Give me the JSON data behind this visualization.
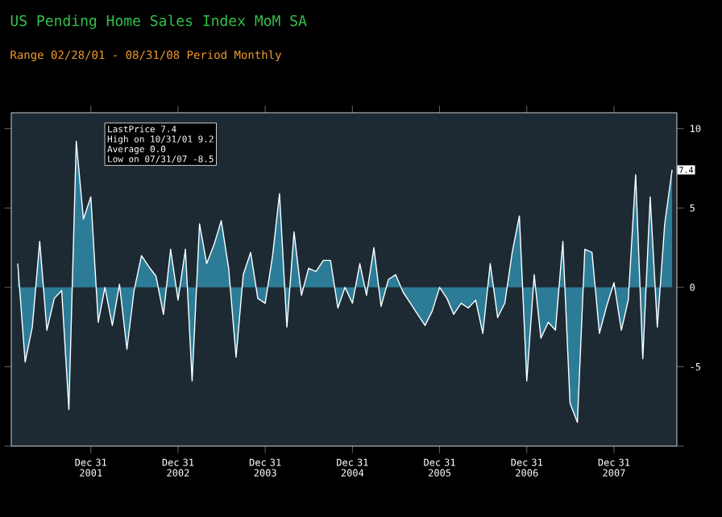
{
  "chart_data": {
    "type": "area",
    "title": "US Pending Home Sales Index MoM SA",
    "subtitle": "Range 02/28/01 - 08/31/08   Period Monthly",
    "x": [
      "2001-02-28",
      "2001-03-31",
      "2001-04-30",
      "2001-05-31",
      "2001-06-30",
      "2001-07-31",
      "2001-08-31",
      "2001-09-30",
      "2001-10-31",
      "2001-11-30",
      "2001-12-31",
      "2002-01-31",
      "2002-02-28",
      "2002-03-31",
      "2002-04-30",
      "2002-05-31",
      "2002-06-30",
      "2002-07-31",
      "2002-08-31",
      "2002-09-30",
      "2002-10-31",
      "2002-11-30",
      "2002-12-31",
      "2003-01-31",
      "2003-02-28",
      "2003-03-31",
      "2003-04-30",
      "2003-05-31",
      "2003-06-30",
      "2003-07-31",
      "2003-08-31",
      "2003-09-30",
      "2003-10-31",
      "2003-11-30",
      "2003-12-31",
      "2004-01-31",
      "2004-02-29",
      "2004-03-31",
      "2004-04-30",
      "2004-05-31",
      "2004-06-30",
      "2004-07-31",
      "2004-08-31",
      "2004-09-30",
      "2004-10-31",
      "2004-11-30",
      "2004-12-31",
      "2005-01-31",
      "2005-02-28",
      "2005-03-31",
      "2005-04-30",
      "2005-05-31",
      "2005-06-30",
      "2005-07-31",
      "2005-08-31",
      "2005-09-30",
      "2005-10-31",
      "2005-11-30",
      "2005-12-31",
      "2006-01-31",
      "2006-02-28",
      "2006-03-31",
      "2006-04-30",
      "2006-05-31",
      "2006-06-30",
      "2006-07-31",
      "2006-08-31",
      "2006-09-30",
      "2006-10-31",
      "2006-11-30",
      "2006-12-31",
      "2007-01-31",
      "2007-02-28",
      "2007-03-31",
      "2007-04-30",
      "2007-05-31",
      "2007-06-30",
      "2007-07-31",
      "2007-08-31",
      "2007-09-30",
      "2007-10-31",
      "2007-11-30",
      "2007-12-31",
      "2008-01-31",
      "2008-02-29",
      "2008-03-31",
      "2008-04-30",
      "2008-05-31",
      "2008-06-30",
      "2008-07-31",
      "2008-08-31"
    ],
    "values": [
      1.5,
      -4.7,
      -2.5,
      2.9,
      -2.7,
      -0.7,
      -0.2,
      -7.7,
      9.2,
      4.3,
      5.7,
      -2.2,
      0.0,
      -2.4,
      0.2,
      -3.9,
      -0.2,
      2.0,
      1.3,
      0.7,
      -1.7,
      2.4,
      -0.8,
      2.4,
      -5.9,
      4.0,
      1.5,
      2.7,
      4.2,
      1.2,
      -4.4,
      0.8,
      2.2,
      -0.7,
      -1.0,
      2.0,
      5.9,
      -2.5,
      3.5,
      -0.5,
      1.2,
      1.0,
      1.7,
      1.7,
      -1.3,
      0.0,
      -1.0,
      1.5,
      -0.5,
      2.5,
      -1.2,
      0.5,
      0.8,
      -0.3,
      -1.0,
      -1.7,
      -2.4,
      -1.5,
      0.0,
      -0.7,
      -1.7,
      -1.0,
      -1.3,
      -0.8,
      -2.9,
      1.5,
      -1.9,
      -1.0,
      2.2,
      4.5,
      -5.9,
      0.8,
      -3.2,
      -2.2,
      -2.7,
      2.9,
      -7.3,
      -8.5,
      2.4,
      2.2,
      -2.9,
      -1.2,
      0.3,
      -2.7,
      -0.8,
      7.1,
      -4.5,
      5.7,
      -2.5,
      4.0,
      7.4
    ],
    "color": "#2c7c98",
    "xlim": [
      "2001-02-01",
      "2008-09-20"
    ],
    "xticks": [
      {
        "value": "2001-12-31",
        "label": "Dec 31 2001"
      },
      {
        "value": "2002-12-31",
        "label": "Dec 31 2002"
      },
      {
        "value": "2003-12-31",
        "label": "Dec 31 2003"
      },
      {
        "value": "2004-12-31",
        "label": "Dec 31 2004"
      },
      {
        "value": "2005-12-31",
        "label": "Dec 31 2005"
      },
      {
        "value": "2006-12-31",
        "label": "Dec 31 2006"
      },
      {
        "value": "2007-12-31",
        "label": "Dec 31 2007"
      }
    ],
    "ylim": [
      -10,
      11
    ],
    "yticks": [
      {
        "value": -10,
        "label": null
      },
      -5,
      0,
      5,
      10
    ],
    "annotations": [
      "LastPrice 7.4",
      "High on 10/31/01 9.2",
      "Average 0.0",
      "Low on 07/31/07 -8.5",
      {
        "text": "7.4",
        "x": "2008-08-31",
        "y": 7.4
      }
    ],
    "grid": false
  }
}
